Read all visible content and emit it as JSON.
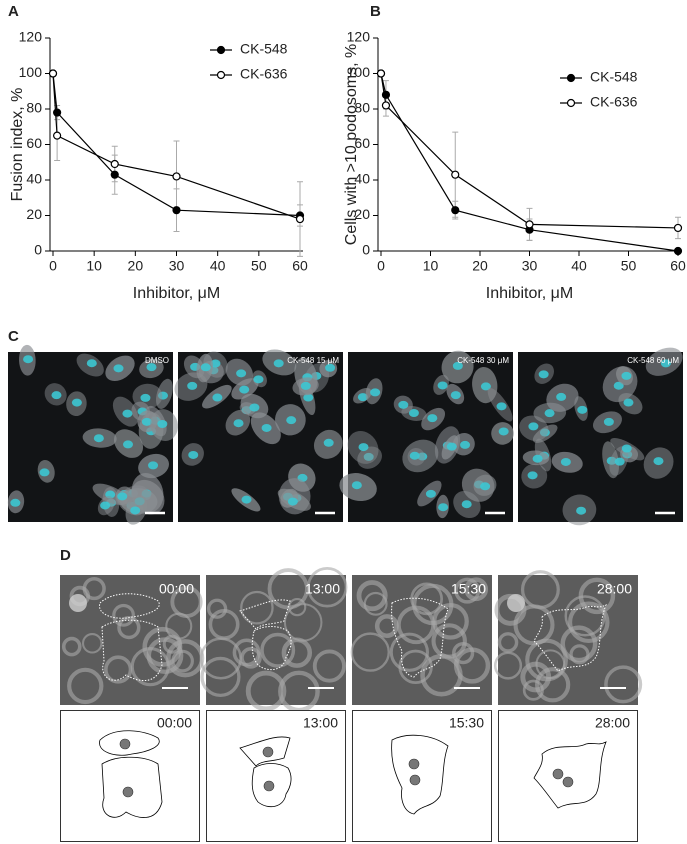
{
  "chart_data": [
    {
      "type": "line",
      "panel": "A",
      "xlabel": "Inhibitor, μM",
      "ylabel": "Fusion index, %",
      "x": [
        0,
        1,
        15,
        30,
        60
      ],
      "xlim": [
        0,
        60
      ],
      "xticks": [
        0,
        10,
        20,
        30,
        40,
        50,
        60
      ],
      "ylim": [
        0,
        120
      ],
      "yticks": [
        0,
        20,
        40,
        60,
        80,
        100,
        120
      ],
      "legend": "upper right",
      "error_color": "#aaaaaa",
      "series": [
        {
          "name": "CK-548",
          "color": "#000000",
          "marker_fill": "#000000",
          "values": [
            100,
            78,
            43,
            23,
            20
          ],
          "errors": [
            0,
            4,
            11,
            12,
            6
          ]
        },
        {
          "name": "CK-636",
          "color": "#000000",
          "marker_fill": "#ffffff",
          "values": [
            100,
            65,
            49,
            42,
            18
          ],
          "errors": [
            0,
            14,
            10,
            20,
            21
          ]
        }
      ]
    },
    {
      "type": "line",
      "panel": "B",
      "xlabel": "Inhibitor, μM",
      "ylabel": "Cells with >10 podosoms, %",
      "x": [
        0,
        1,
        15,
        30,
        60
      ],
      "xlim": [
        0,
        60
      ],
      "xticks": [
        0,
        10,
        20,
        30,
        40,
        50,
        60
      ],
      "ylim": [
        0,
        120
      ],
      "yticks": [
        0,
        20,
        40,
        60,
        80,
        100,
        120
      ],
      "legend": "upper right",
      "error_color": "#aaaaaa",
      "series": [
        {
          "name": "CK-548",
          "color": "#000000",
          "marker_fill": "#000000",
          "values": [
            100,
            88,
            23,
            12,
            0
          ],
          "errors": [
            0,
            8,
            5,
            6,
            0
          ]
        },
        {
          "name": "CK-636",
          "color": "#000000",
          "marker_fill": "#ffffff",
          "values": [
            100,
            82,
            43,
            15,
            13
          ],
          "errors": [
            0,
            6,
            24,
            9,
            6
          ]
        }
      ]
    }
  ],
  "panel_c": {
    "panel": "C",
    "labels": [
      "DMSO",
      "CK-548 15 μM",
      "CK-548 30 μM",
      "CK-548 60 μM"
    ]
  },
  "panel_d": {
    "panel": "D",
    "timestamps": [
      "00:00",
      "13:00",
      "15:30",
      "28:00"
    ]
  }
}
